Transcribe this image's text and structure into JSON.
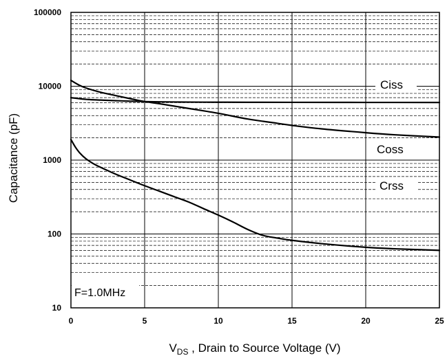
{
  "chart_data": {
    "type": "line",
    "title": "",
    "xlabel": {
      "main": "V",
      "sub": "DS",
      "rest": " , Drain to Source Voltage (V)"
    },
    "ylabel": "Capacitance (pF)",
    "xlim": [
      0,
      25
    ],
    "ylim": [
      10,
      100000
    ],
    "yscale": "log",
    "grid": "on",
    "xticks": [
      0,
      5,
      10,
      15,
      20,
      25
    ],
    "xtick_labels": [
      "0",
      "5",
      "10",
      "15",
      "20",
      "25"
    ],
    "yticks": [
      10,
      100,
      1000,
      10000,
      100000
    ],
    "ytick_labels": [
      "10",
      "100",
      "1000",
      "10000",
      "100000"
    ],
    "annotation": "F=1.0MHz",
    "series": [
      {
        "name": "Ciss",
        "x": [
          0,
          1,
          2,
          3,
          4,
          5,
          6,
          8,
          10,
          12,
          15,
          20,
          25
        ],
        "y": [
          7000,
          6650,
          6500,
          6380,
          6280,
          6200,
          6150,
          6100,
          6080,
          6060,
          6050,
          6040,
          6030
        ]
      },
      {
        "name": "Coss",
        "x": [
          0,
          0.5,
          1,
          2,
          3,
          4,
          5,
          6,
          8,
          10,
          12,
          14,
          15,
          17,
          20,
          22,
          25
        ],
        "y": [
          12000,
          10500,
          9500,
          8300,
          7500,
          6800,
          6200,
          5800,
          5000,
          4300,
          3600,
          3150,
          2950,
          2650,
          2350,
          2200,
          2050
        ]
      },
      {
        "name": "Crss",
        "x": [
          0,
          0.3,
          0.6,
          1,
          1.5,
          2,
          3,
          4,
          5,
          6,
          7,
          8,
          9,
          10,
          11,
          12,
          13,
          14,
          15,
          17,
          20,
          22,
          25
        ],
        "y": [
          1900,
          1500,
          1250,
          1050,
          900,
          800,
          650,
          540,
          450,
          380,
          320,
          270,
          220,
          180,
          145,
          115,
          96,
          88,
          82,
          74,
          66,
          63,
          60
        ]
      }
    ]
  }
}
